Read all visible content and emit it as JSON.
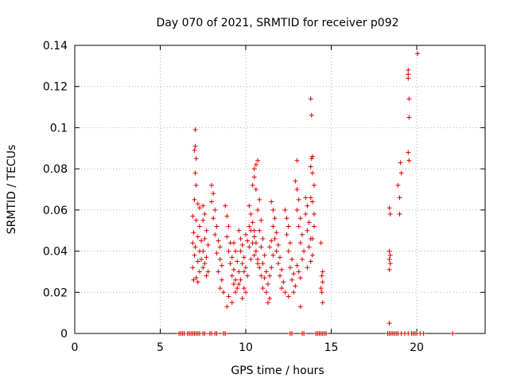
{
  "chart_data": {
    "type": "scatter",
    "title": "Day 070 of 2021, SRMTID for receiver p092",
    "xlabel": "GPS time / hours",
    "ylabel": "SRMTID / TECUs",
    "xlim": [
      0,
      24
    ],
    "ylim": [
      0,
      0.14
    ],
    "xticks": [
      0,
      5,
      10,
      15,
      20
    ],
    "xtick_labels": [
      "0",
      "5",
      "10",
      "15",
      "20"
    ],
    "yticks": [
      0,
      0.02,
      0.04,
      0.06,
      0.08,
      0.1,
      0.12,
      0.14
    ],
    "ytick_labels": [
      "0",
      "0.02",
      "0.04",
      "0.06",
      "0.08",
      "0.1",
      "0.12",
      "0.14"
    ],
    "grid": true,
    "marker": "+",
    "color": "#e00000",
    "series": [
      {
        "name": "p092",
        "points": [
          [
            7.05,
            0.099
          ],
          [
            7.05,
            0.091
          ],
          [
            7.0,
            0.089
          ],
          [
            7.1,
            0.085
          ],
          [
            7.05,
            0.078
          ],
          [
            7.1,
            0.072
          ],
          [
            7.0,
            0.065
          ],
          [
            7.2,
            0.063
          ],
          [
            7.3,
            0.061
          ],
          [
            6.9,
            0.057
          ],
          [
            7.1,
            0.055
          ],
          [
            7.3,
            0.052
          ],
          [
            6.95,
            0.049
          ],
          [
            7.2,
            0.047
          ],
          [
            7.4,
            0.045
          ],
          [
            6.9,
            0.044
          ],
          [
            7.05,
            0.042
          ],
          [
            7.3,
            0.04
          ],
          [
            7.0,
            0.038
          ],
          [
            7.4,
            0.036
          ],
          [
            7.2,
            0.035
          ],
          [
            6.9,
            0.032
          ],
          [
            7.3,
            0.03
          ],
          [
            7.1,
            0.027
          ],
          [
            6.95,
            0.026
          ],
          [
            7.2,
            0.025
          ],
          [
            7.5,
            0.062
          ],
          [
            7.6,
            0.058
          ],
          [
            7.5,
            0.055
          ],
          [
            7.7,
            0.05
          ],
          [
            7.6,
            0.046
          ],
          [
            7.8,
            0.043
          ],
          [
            7.5,
            0.04
          ],
          [
            7.7,
            0.037
          ],
          [
            7.6,
            0.034
          ],
          [
            7.5,
            0.032
          ],
          [
            7.8,
            0.03
          ],
          [
            7.7,
            0.028
          ],
          [
            8.0,
            0.072
          ],
          [
            8.1,
            0.068
          ],
          [
            8.0,
            0.064
          ],
          [
            8.2,
            0.06
          ],
          [
            8.1,
            0.056
          ],
          [
            8.3,
            0.052
          ],
          [
            8.2,
            0.048
          ],
          [
            8.4,
            0.045
          ],
          [
            8.5,
            0.042
          ],
          [
            8.3,
            0.039
          ],
          [
            8.5,
            0.036
          ],
          [
            8.6,
            0.033
          ],
          [
            8.4,
            0.03
          ],
          [
            8.6,
            0.026
          ],
          [
            8.5,
            0.022
          ],
          [
            8.7,
            0.02
          ],
          [
            8.8,
            0.062
          ],
          [
            8.9,
            0.057
          ],
          [
            9.0,
            0.052
          ],
          [
            8.9,
            0.047
          ],
          [
            9.1,
            0.044
          ],
          [
            9.0,
            0.04
          ],
          [
            9.2,
            0.037
          ],
          [
            9.1,
            0.034
          ],
          [
            9.3,
            0.031
          ],
          [
            9.2,
            0.028
          ],
          [
            9.4,
            0.026
          ],
          [
            9.3,
            0.024
          ],
          [
            9.5,
            0.022
          ],
          [
            9.4,
            0.02
          ],
          [
            9.0,
            0.018
          ],
          [
            9.2,
            0.015
          ],
          [
            8.9,
            0.013
          ],
          [
            9.6,
            0.05
          ],
          [
            9.7,
            0.046
          ],
          [
            9.8,
            0.043
          ],
          [
            9.7,
            0.04
          ],
          [
            9.9,
            0.037
          ],
          [
            9.8,
            0.034
          ],
          [
            10.0,
            0.032
          ],
          [
            9.9,
            0.03
          ],
          [
            10.1,
            0.028
          ],
          [
            9.7,
            0.026
          ],
          [
            9.6,
            0.024
          ],
          [
            9.9,
            0.022
          ],
          [
            10.0,
            0.02
          ],
          [
            9.8,
            0.017
          ],
          [
            9.6,
            0.03
          ],
          [
            9.5,
            0.035
          ],
          [
            9.4,
            0.04
          ],
          [
            9.3,
            0.044
          ],
          [
            10.2,
            0.062
          ],
          [
            10.3,
            0.058
          ],
          [
            10.4,
            0.054
          ],
          [
            10.3,
            0.05
          ],
          [
            10.5,
            0.047
          ],
          [
            10.4,
            0.044
          ],
          [
            10.2,
            0.042
          ],
          [
            10.6,
            0.04
          ],
          [
            10.5,
            0.038
          ],
          [
            10.3,
            0.036
          ],
          [
            10.7,
            0.034
          ],
          [
            10.1,
            0.045
          ],
          [
            10.0,
            0.048
          ],
          [
            10.2,
            0.052
          ],
          [
            10.4,
            0.072
          ],
          [
            10.5,
            0.076
          ],
          [
            10.5,
            0.08
          ],
          [
            10.6,
            0.082
          ],
          [
            10.7,
            0.084
          ],
          [
            10.6,
            0.07
          ],
          [
            10.8,
            0.065
          ],
          [
            10.7,
            0.06
          ],
          [
            10.9,
            0.055
          ],
          [
            10.8,
            0.05
          ],
          [
            11.0,
            0.046
          ],
          [
            10.9,
            0.042
          ],
          [
            11.1,
            0.038
          ],
          [
            11.0,
            0.034
          ],
          [
            11.2,
            0.03
          ],
          [
            11.1,
            0.027
          ],
          [
            11.3,
            0.024
          ],
          [
            11.2,
            0.02
          ],
          [
            11.4,
            0.017
          ],
          [
            11.3,
            0.015
          ],
          [
            11.0,
            0.022
          ],
          [
            10.9,
            0.028
          ],
          [
            10.8,
            0.032
          ],
          [
            10.7,
            0.036
          ],
          [
            10.6,
            0.044
          ],
          [
            10.5,
            0.05
          ],
          [
            11.5,
            0.064
          ],
          [
            11.6,
            0.06
          ],
          [
            11.7,
            0.056
          ],
          [
            11.6,
            0.052
          ],
          [
            11.8,
            0.049
          ],
          [
            11.7,
            0.046
          ],
          [
            11.9,
            0.043
          ],
          [
            11.8,
            0.04
          ],
          [
            12.0,
            0.037
          ],
          [
            11.9,
            0.034
          ],
          [
            12.1,
            0.031
          ],
          [
            12.0,
            0.028
          ],
          [
            12.2,
            0.025
          ],
          [
            12.1,
            0.022
          ],
          [
            12.3,
            0.02
          ],
          [
            11.5,
            0.045
          ],
          [
            11.4,
            0.042
          ],
          [
            11.6,
            0.038
          ],
          [
            11.5,
            0.032
          ],
          [
            11.4,
            0.028
          ],
          [
            12.3,
            0.06
          ],
          [
            12.4,
            0.056
          ],
          [
            12.5,
            0.052
          ],
          [
            12.4,
            0.048
          ],
          [
            12.6,
            0.044
          ],
          [
            12.5,
            0.04
          ],
          [
            12.7,
            0.036
          ],
          [
            12.6,
            0.032
          ],
          [
            12.8,
            0.029
          ],
          [
            12.7,
            0.026
          ],
          [
            12.9,
            0.023
          ],
          [
            12.8,
            0.02
          ],
          [
            12.5,
            0.018
          ],
          [
            12.9,
            0.074
          ],
          [
            13.0,
            0.07
          ],
          [
            13.1,
            0.065
          ],
          [
            13.0,
            0.06
          ],
          [
            13.2,
            0.056
          ],
          [
            13.1,
            0.052
          ],
          [
            13.3,
            0.048
          ],
          [
            13.2,
            0.044
          ],
          [
            13.4,
            0.04
          ],
          [
            13.3,
            0.036
          ],
          [
            13.0,
            0.033
          ],
          [
            13.1,
            0.03
          ],
          [
            13.2,
            0.027
          ],
          [
            13.0,
            0.084
          ],
          [
            13.2,
            0.013
          ],
          [
            13.5,
            0.066
          ],
          [
            13.6,
            0.062
          ],
          [
            13.5,
            0.058
          ],
          [
            13.7,
            0.054
          ],
          [
            13.6,
            0.05
          ],
          [
            13.8,
            0.046
          ],
          [
            13.7,
            0.042
          ],
          [
            13.9,
            0.038
          ],
          [
            13.8,
            0.035
          ],
          [
            13.6,
            0.032
          ],
          [
            13.9,
            0.064
          ],
          [
            14.0,
            0.058
          ],
          [
            14.0,
            0.052
          ],
          [
            13.9,
            0.046
          ],
          [
            13.8,
            0.114
          ],
          [
            13.85,
            0.106
          ],
          [
            13.9,
            0.086
          ],
          [
            13.85,
            0.085
          ],
          [
            13.8,
            0.081
          ],
          [
            13.9,
            0.078
          ],
          [
            14.0,
            0.072
          ],
          [
            13.8,
            0.066
          ],
          [
            14.4,
            0.044
          ],
          [
            14.5,
            0.03
          ],
          [
            14.45,
            0.028
          ],
          [
            14.5,
            0.025
          ],
          [
            14.4,
            0.022
          ],
          [
            14.45,
            0.02
          ],
          [
            14.5,
            0.015
          ],
          [
            18.4,
            0.061
          ],
          [
            18.45,
            0.058
          ],
          [
            18.4,
            0.04
          ],
          [
            18.45,
            0.038
          ],
          [
            18.4,
            0.036
          ],
          [
            18.45,
            0.034
          ],
          [
            18.4,
            0.031
          ],
          [
            18.4,
            0.005
          ],
          [
            18.9,
            0.072
          ],
          [
            19.0,
            0.066
          ],
          [
            19.05,
            0.083
          ],
          [
            19.1,
            0.078
          ],
          [
            19.0,
            0.058
          ],
          [
            19.5,
            0.128
          ],
          [
            19.5,
            0.126
          ],
          [
            19.5,
            0.124
          ],
          [
            19.55,
            0.114
          ],
          [
            19.55,
            0.105
          ],
          [
            19.5,
            0.088
          ],
          [
            19.55,
            0.084
          ],
          [
            20.05,
            0.136
          ],
          [
            6.1,
            0
          ],
          [
            6.2,
            0
          ],
          [
            6.3,
            0
          ],
          [
            6.4,
            0
          ],
          [
            6.6,
            0
          ],
          [
            6.7,
            0
          ],
          [
            6.8,
            0
          ],
          [
            6.9,
            0
          ],
          [
            7.0,
            0
          ],
          [
            7.1,
            0
          ],
          [
            7.2,
            0
          ],
          [
            7.3,
            0
          ],
          [
            7.5,
            0
          ],
          [
            7.6,
            0
          ],
          [
            7.9,
            0
          ],
          [
            8.0,
            0
          ],
          [
            8.2,
            0
          ],
          [
            8.3,
            0
          ],
          [
            8.7,
            0
          ],
          [
            8.8,
            0
          ],
          [
            12.6,
            0
          ],
          [
            12.7,
            0
          ],
          [
            13.3,
            0
          ],
          [
            13.4,
            0
          ],
          [
            14.1,
            0
          ],
          [
            14.2,
            0
          ],
          [
            14.3,
            0
          ],
          [
            14.4,
            0
          ],
          [
            14.5,
            0
          ],
          [
            14.6,
            0
          ],
          [
            14.7,
            0
          ],
          [
            18.3,
            0
          ],
          [
            18.4,
            0
          ],
          [
            18.5,
            0
          ],
          [
            18.6,
            0
          ],
          [
            18.7,
            0
          ],
          [
            18.8,
            0
          ],
          [
            18.9,
            0
          ],
          [
            19.1,
            0
          ],
          [
            19.3,
            0
          ],
          [
            19.5,
            0
          ],
          [
            19.7,
            0
          ],
          [
            19.8,
            0
          ],
          [
            19.9,
            0
          ],
          [
            20.0,
            0
          ],
          [
            20.2,
            0
          ],
          [
            20.4,
            0
          ],
          [
            22.1,
            0
          ]
        ]
      }
    ]
  }
}
